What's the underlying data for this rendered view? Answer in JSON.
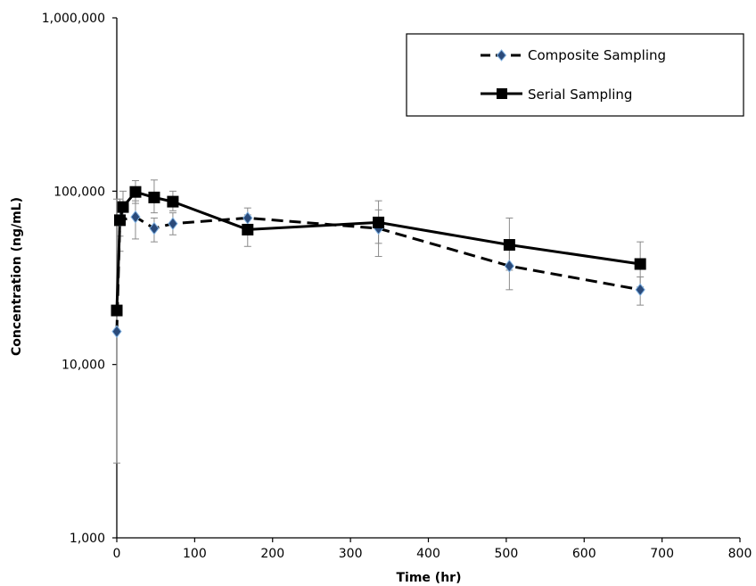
{
  "chart_data": {
    "type": "line",
    "xlabel": "Time (hr)",
    "ylabel": "Concentration (ng/mL)",
    "y_scale": "log",
    "xlim": [
      0,
      800
    ],
    "ylim": [
      1000,
      1000000
    ],
    "x_ticks": [
      0,
      100,
      200,
      300,
      400,
      500,
      600,
      700,
      800
    ],
    "x_tick_labels": [
      "0",
      "100",
      "200",
      "300",
      "400",
      "500",
      "600",
      "700",
      "800"
    ],
    "y_ticks": [
      1000,
      10000,
      100000,
      1000000
    ],
    "y_tick_labels": [
      "1,000",
      "10,000",
      "100,000",
      "1,000,000"
    ],
    "grid": false,
    "legend_position": "top-right",
    "series": [
      {
        "name": "Composite Sampling",
        "line_style": "dashed",
        "marker": "diamond",
        "marker_color": "#2a4a7a",
        "line_color": "#000000",
        "x": [
          0,
          4,
          24,
          48,
          72,
          168,
          336,
          504,
          672
        ],
        "y": [
          15500,
          68000,
          71000,
          61000,
          65000,
          70000,
          61000,
          37000,
          27000
        ],
        "error_low": [
          2700,
          45000,
          53000,
          51000,
          56000,
          62000,
          42000,
          27000,
          22000
        ],
        "error_high": [
          90000,
          90000,
          88000,
          70000,
          75000,
          80000,
          78000,
          46000,
          32000
        ]
      },
      {
        "name": "Serial Sampling",
        "line_style": "solid",
        "marker": "square",
        "marker_color": "#000000",
        "line_color": "#000000",
        "x": [
          0,
          4,
          8,
          24,
          48,
          72,
          168,
          336,
          504,
          672
        ],
        "y": [
          20500,
          68000,
          81000,
          99000,
          92000,
          87000,
          60000,
          66000,
          49000,
          38000
        ],
        "error_low": [
          20500,
          55000,
          70000,
          85000,
          75000,
          77000,
          48000,
          50000,
          35000,
          28000
        ],
        "error_high": [
          20500,
          80000,
          100000,
          115000,
          116000,
          100000,
          73000,
          88000,
          70000,
          51000
        ]
      }
    ]
  }
}
